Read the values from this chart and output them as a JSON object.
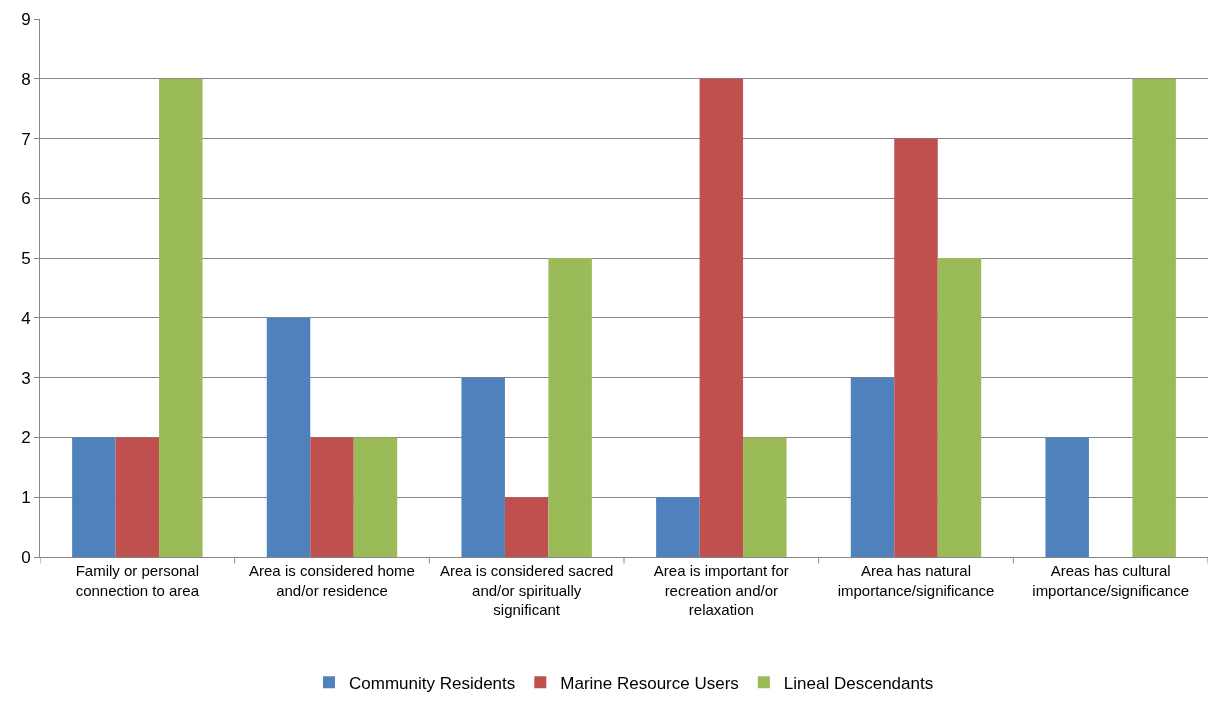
{
  "chart_data": {
    "type": "bar",
    "categories": [
      "Family or personal connection to area",
      "Area is considered home and/or residence",
      "Area is considered sacred and/or spiritually significant",
      "Area is important for recreation and/or relaxation",
      "Area has natural importance/significance",
      "Areas has cultural importance/significance"
    ],
    "series": [
      {
        "name": "Community Residents",
        "color": "#4f81bd",
        "values": [
          2,
          4,
          3,
          1,
          3,
          2
        ]
      },
      {
        "name": "Marine Resource Users",
        "color": "#c0504d",
        "values": [
          2,
          2,
          1,
          8,
          7,
          0
        ]
      },
      {
        "name": "Lineal Descendants",
        "color": "#9bbb59",
        "values": [
          8,
          2,
          5,
          2,
          5,
          8
        ]
      }
    ],
    "ylim": [
      0,
      9
    ],
    "yticks": [
      0,
      1,
      2,
      3,
      4,
      5,
      6,
      7,
      8,
      9
    ],
    "grid": "y",
    "legend": "bottom"
  }
}
